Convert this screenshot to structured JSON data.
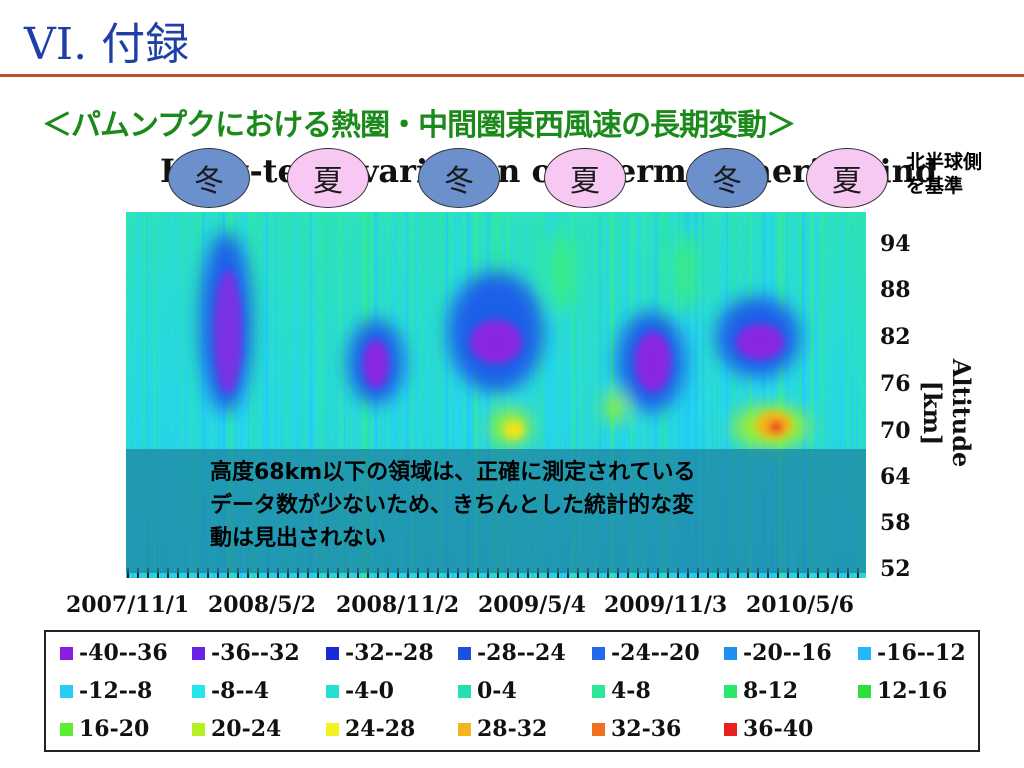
{
  "slide": {
    "title": "VI. 付録",
    "subtitle": "＜パムンプクにおける熱圏・中間圏東西風速の長期変動＞"
  },
  "chart_title_text": "Long-term variation of thermospheric wind",
  "seasons": [
    {
      "label": "冬",
      "type": "winter"
    },
    {
      "label": "夏",
      "type": "summer"
    },
    {
      "label": "冬",
      "type": "winter"
    },
    {
      "label": "夏",
      "type": "summer"
    },
    {
      "label": "冬",
      "type": "winter"
    },
    {
      "label": "夏",
      "type": "summer"
    }
  ],
  "colors": {
    "title": "#1f3fa8",
    "subtitle": "#1b8a1b",
    "rule": "#b4552b",
    "winter": "#6b90cc",
    "summer": "#f7c8f2"
  },
  "annotations": {
    "north": "北半球側\nを基準",
    "overlay": "高度68km以下の領域は、正確に測定されている\nデータ数が少ないため、きちんとした統計的な変\n動は見出されない"
  },
  "chart_data": {
    "type": "heatmap",
    "xlabel": "",
    "ylabel": "Altitude [km]",
    "ylim": [
      52,
      97
    ],
    "x_ticks": [
      "2007/11/1",
      "2008/5/2",
      "2008/11/2",
      "2009/5/4",
      "2009/11/3",
      "2010/5/6"
    ],
    "y_ticks": [
      94,
      88,
      82,
      76,
      70,
      64,
      58,
      52
    ],
    "legend_placement": "bottom",
    "legend": [
      {
        "label": "-40--36",
        "color": "#8a1ee0"
      },
      {
        "label": "-36--32",
        "color": "#6a22e6"
      },
      {
        "label": "-32--28",
        "color": "#1a2ad6"
      },
      {
        "label": "-28--24",
        "color": "#1e50e0"
      },
      {
        "label": "-24--20",
        "color": "#2468ec"
      },
      {
        "label": "-20--16",
        "color": "#1e90f0"
      },
      {
        "label": "-16--12",
        "color": "#24b8f8"
      },
      {
        "label": "-12--8",
        "color": "#24ccf6"
      },
      {
        "label": "-8--4",
        "color": "#24e4ec"
      },
      {
        "label": "-4-0",
        "color": "#24e0d0"
      },
      {
        "label": "0-4",
        "color": "#24e0b0"
      },
      {
        "label": "4-8",
        "color": "#2ce896"
      },
      {
        "label": "8-12",
        "color": "#2ae66a"
      },
      {
        "label": "12-16",
        "color": "#2ede3a"
      },
      {
        "label": "16-20",
        "color": "#5aee2c"
      },
      {
        "label": "20-24",
        "color": "#b4f024"
      },
      {
        "label": "24-28",
        "color": "#f2f21e"
      },
      {
        "label": "28-32",
        "color": "#f4b41e"
      },
      {
        "label": "32-36",
        "color": "#f07020"
      },
      {
        "label": "36-40",
        "color": "#e82020"
      }
    ]
  }
}
